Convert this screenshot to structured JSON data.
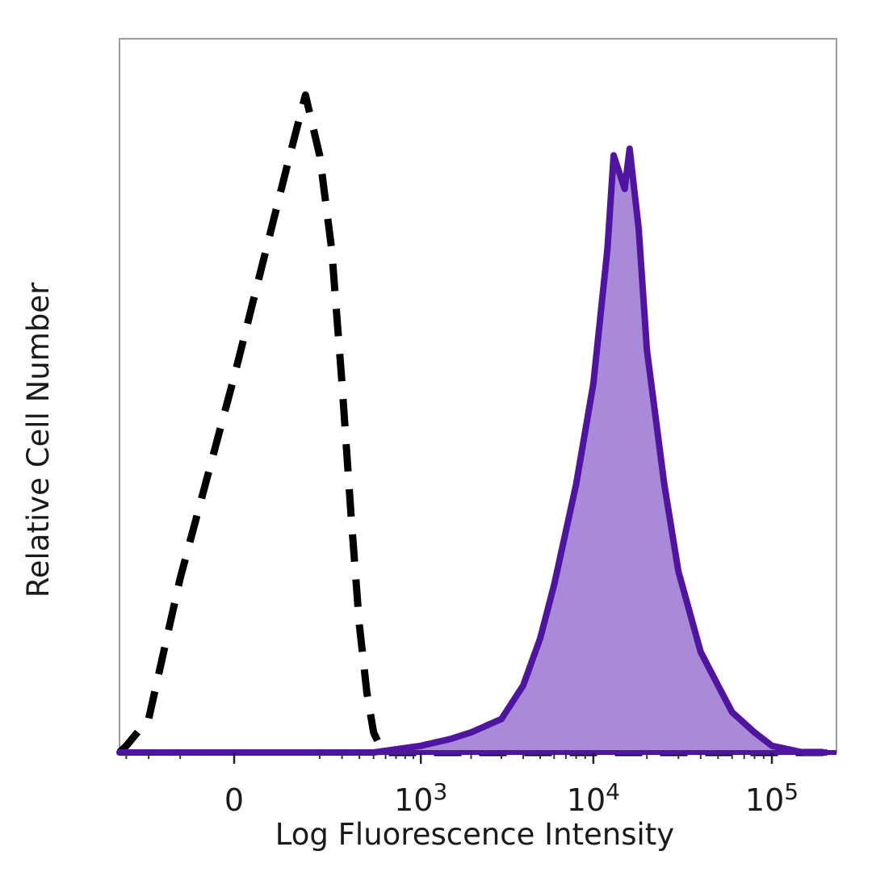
{
  "chart_data": {
    "type": "area",
    "title": "",
    "xlabel": "Log Fluorescence Intensity",
    "ylabel": "Relative Cell Number",
    "x_scale": "biexponential",
    "xlim": [
      -400,
      200000
    ],
    "ylim": [
      0,
      100
    ],
    "x_ticks": [
      {
        "value": 0,
        "base": "0",
        "exp": ""
      },
      {
        "value": 1000,
        "base": "10",
        "exp": "3"
      },
      {
        "value": 10000,
        "base": "10",
        "exp": "4"
      },
      {
        "value": 100000,
        "base": "10",
        "exp": "5"
      }
    ],
    "grid": false,
    "legend": "none",
    "series": [
      {
        "style": "dashed",
        "color": "#000000",
        "fill": "none",
        "x": [
          -400,
          -300,
          -200,
          -100,
          0,
          100,
          150,
          200,
          250,
          300,
          350,
          400,
          450,
          500,
          550,
          600,
          700,
          800,
          900,
          1000,
          1500,
          3000,
          10000,
          100000,
          200000
        ],
        "y": [
          0,
          1,
          5,
          26,
          56,
          88,
          98,
          89,
          75,
          55,
          35,
          19,
          9,
          3,
          1,
          0,
          0,
          0,
          0,
          0,
          0,
          0,
          0,
          0,
          0
        ]
      },
      {
        "style": "solid",
        "color": "#4f14a0",
        "fill": "#a98ad8",
        "x": [
          -400,
          0,
          500,
          1000,
          1500,
          2000,
          3000,
          4000,
          5000,
          6000,
          8000,
          10000,
          12000,
          13000,
          15000,
          16000,
          18000,
          20000,
          25000,
          30000,
          40000,
          50000,
          60000,
          80000,
          100000,
          150000,
          200000
        ],
        "y": [
          0,
          0,
          0,
          1,
          2,
          3,
          5,
          10,
          17,
          25,
          40,
          55,
          75,
          89,
          84,
          90,
          78,
          60,
          40,
          27,
          15,
          10,
          6,
          3,
          1,
          0,
          0
        ]
      }
    ]
  }
}
